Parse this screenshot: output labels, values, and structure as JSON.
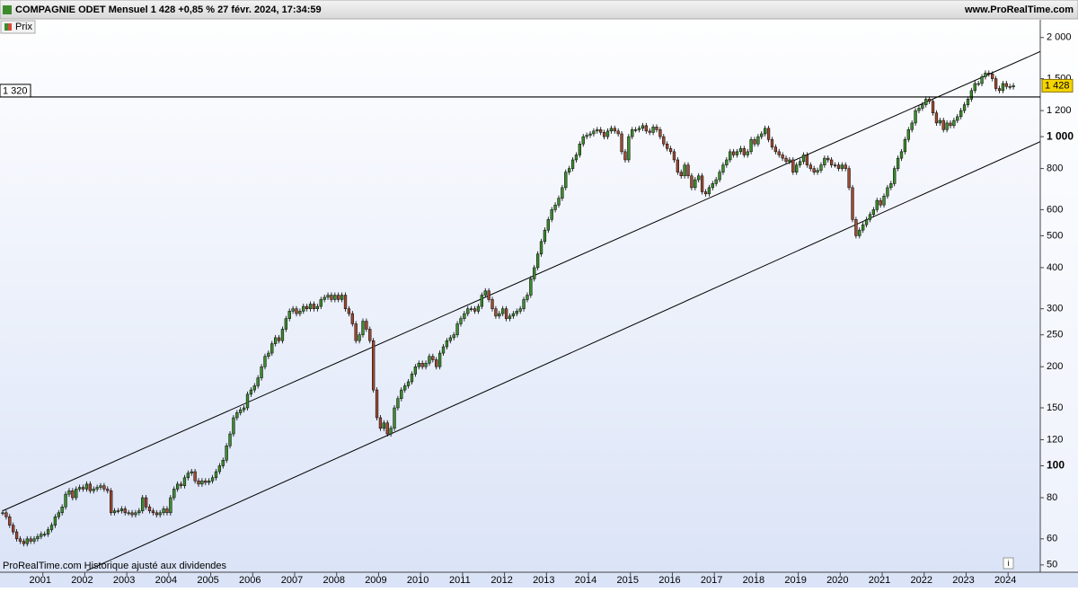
{
  "header": {
    "title": "COMPAGNIE ODET Mensuel 1 428 +0,85 % 27 févr. 2024, 17:34:59",
    "source": "www.ProRealTime.com"
  },
  "footer": {
    "note": "ProRealTime.com  Historique ajusté aux dividendes",
    "icon": "i"
  },
  "chart_data": {
    "type": "candlestick",
    "legend": "Prix",
    "log_scale": true,
    "up_color": "#3d8b2e",
    "down_color": "#9c4a32",
    "ylim": [
      47.5,
      2265
    ],
    "yticks": [
      50,
      60,
      80,
      100,
      120,
      150,
      200,
      250,
      300,
      400,
      500,
      600,
      800,
      {
        "value": 1000,
        "label": "1 000"
      },
      {
        "value": 1200,
        "label": "1 200"
      },
      {
        "value": 1500,
        "label": "1 500"
      },
      {
        "value": 2000,
        "label": "2 000"
      }
    ],
    "bold_ticks": [
      100,
      1000
    ],
    "hlines": [
      {
        "value": 1320,
        "label": "1 320"
      }
    ],
    "last_value_label": "1 428",
    "trendlines": [
      {
        "x": [
          0,
          297
        ],
        "values": [
          73,
          1820
        ]
      },
      {
        "x": [
          24,
          297
        ],
        "values": [
          48,
          969
        ]
      }
    ],
    "categories": [
      null,
      null,
      null,
      null,
      null,
      null,
      null,
      null,
      null,
      null,
      null,
      null,
      "2001",
      null,
      null,
      null,
      null,
      null,
      null,
      null,
      null,
      null,
      null,
      null,
      "2002",
      null,
      null,
      null,
      null,
      null,
      null,
      null,
      null,
      null,
      null,
      null,
      "2003",
      null,
      null,
      null,
      null,
      null,
      null,
      null,
      null,
      null,
      null,
      null,
      "2004",
      null,
      null,
      null,
      null,
      null,
      null,
      null,
      null,
      null,
      null,
      null,
      "2005",
      null,
      null,
      null,
      null,
      null,
      null,
      null,
      null,
      null,
      null,
      null,
      "2006",
      null,
      null,
      null,
      null,
      null,
      null,
      null,
      null,
      null,
      null,
      null,
      "2007",
      null,
      null,
      null,
      null,
      null,
      null,
      null,
      null,
      null,
      null,
      null,
      "2008",
      null,
      null,
      null,
      null,
      null,
      null,
      null,
      null,
      null,
      null,
      null,
      "2009",
      null,
      null,
      null,
      null,
      null,
      null,
      null,
      null,
      null,
      null,
      null,
      "2010",
      null,
      null,
      null,
      null,
      null,
      null,
      null,
      null,
      null,
      null,
      null,
      "2011",
      null,
      null,
      null,
      null,
      null,
      null,
      null,
      null,
      null,
      null,
      null,
      "2012",
      null,
      null,
      null,
      null,
      null,
      null,
      null,
      null,
      null,
      null,
      null,
      "2013",
      null,
      null,
      null,
      null,
      null,
      null,
      null,
      null,
      null,
      null,
      null,
      "2014",
      null,
      null,
      null,
      null,
      null,
      null,
      null,
      null,
      null,
      null,
      null,
      "2015",
      null,
      null,
      null,
      null,
      null,
      null,
      null,
      null,
      null,
      null,
      null,
      "2016",
      null,
      null,
      null,
      null,
      null,
      null,
      null,
      null,
      null,
      null,
      null,
      "2017",
      null,
      null,
      null,
      null,
      null,
      null,
      null,
      null,
      null,
      null,
      null,
      "2018",
      null,
      null,
      null,
      null,
      null,
      null,
      null,
      null,
      null,
      null,
      null,
      "2019",
      null,
      null,
      null,
      null,
      null,
      null,
      null,
      null,
      null,
      null,
      null,
      "2020",
      null,
      null,
      null,
      null,
      null,
      null,
      null,
      null,
      null,
      null,
      null,
      "2021",
      null,
      null,
      null,
      null,
      null,
      null,
      null,
      null,
      null,
      null,
      null,
      "2022",
      null,
      null,
      null,
      null,
      null,
      null,
      null,
      null,
      null,
      null,
      null,
      "2023",
      null,
      null,
      null,
      null,
      null,
      null,
      null,
      null,
      null,
      null,
      null,
      "2024",
      null
    ],
    "values": [
      72,
      70,
      66,
      63,
      60,
      59,
      58,
      60,
      59,
      60,
      61,
      62,
      62,
      64,
      66,
      70,
      72,
      75,
      82,
      84,
      80,
      85,
      86,
      85,
      88,
      84,
      85,
      86,
      87,
      85,
      84,
      72,
      73,
      73,
      74,
      72,
      72,
      71,
      72,
      73,
      80,
      75,
      73,
      72,
      71,
      72,
      74,
      72,
      80,
      85,
      88,
      87,
      92,
      95,
      96,
      90,
      88,
      90,
      89,
      90,
      92,
      96,
      100,
      104,
      115,
      125,
      140,
      145,
      148,
      150,
      165,
      170,
      175,
      185,
      200,
      215,
      220,
      235,
      245,
      240,
      260,
      280,
      295,
      300,
      290,
      295,
      305,
      300,
      310,
      300,
      305,
      320,
      325,
      330,
      320,
      330,
      320,
      330,
      300,
      290,
      270,
      240,
      250,
      275,
      260,
      240,
      170,
      140,
      130,
      135,
      125,
      130,
      150,
      160,
      170,
      175,
      180,
      190,
      200,
      205,
      200,
      205,
      215,
      210,
      200,
      220,
      230,
      240,
      245,
      250,
      270,
      280,
      290,
      300,
      300,
      295,
      305,
      330,
      340,
      320,
      300,
      285,
      290,
      300,
      280,
      285,
      290,
      295,
      300,
      320,
      330,
      370,
      400,
      440,
      480,
      520,
      560,
      600,
      620,
      650,
      700,
      780,
      800,
      850,
      880,
      950,
      1000,
      1010,
      1020,
      1040,
      1050,
      1030,
      1000,
      1040,
      1060,
      1040,
      1020,
      900,
      850,
      1000,
      1050,
      1050,
      1060,
      1080,
      1040,
      1030,
      1070,
      1050,
      1000,
      950,
      920,
      900,
      850,
      780,
      760,
      820,
      760,
      700,
      740,
      760,
      680,
      670,
      700,
      720,
      740,
      780,
      820,
      850,
      900,
      880,
      900,
      920,
      880,
      900,
      980,
      950,
      1000,
      1020,
      1060,
      980,
      930,
      900,
      880,
      860,
      840,
      850,
      780,
      820,
      840,
      880,
      820,
      800,
      780,
      790,
      820,
      860,
      850,
      820,
      820,
      800,
      820,
      800,
      700,
      560,
      500,
      520,
      540,
      560,
      580,
      600,
      640,
      620,
      660,
      700,
      720,
      800,
      860,
      900,
      980,
      1050,
      1100,
      1200,
      1220,
      1250,
      1300,
      1280,
      1180,
      1100,
      1120,
      1050,
      1100,
      1080,
      1120,
      1150,
      1200,
      1250,
      1300,
      1380,
      1450,
      1450,
      1520,
      1560,
      1550,
      1500,
      1400,
      1380,
      1450,
      1420,
      1416,
      1428
    ]
  }
}
